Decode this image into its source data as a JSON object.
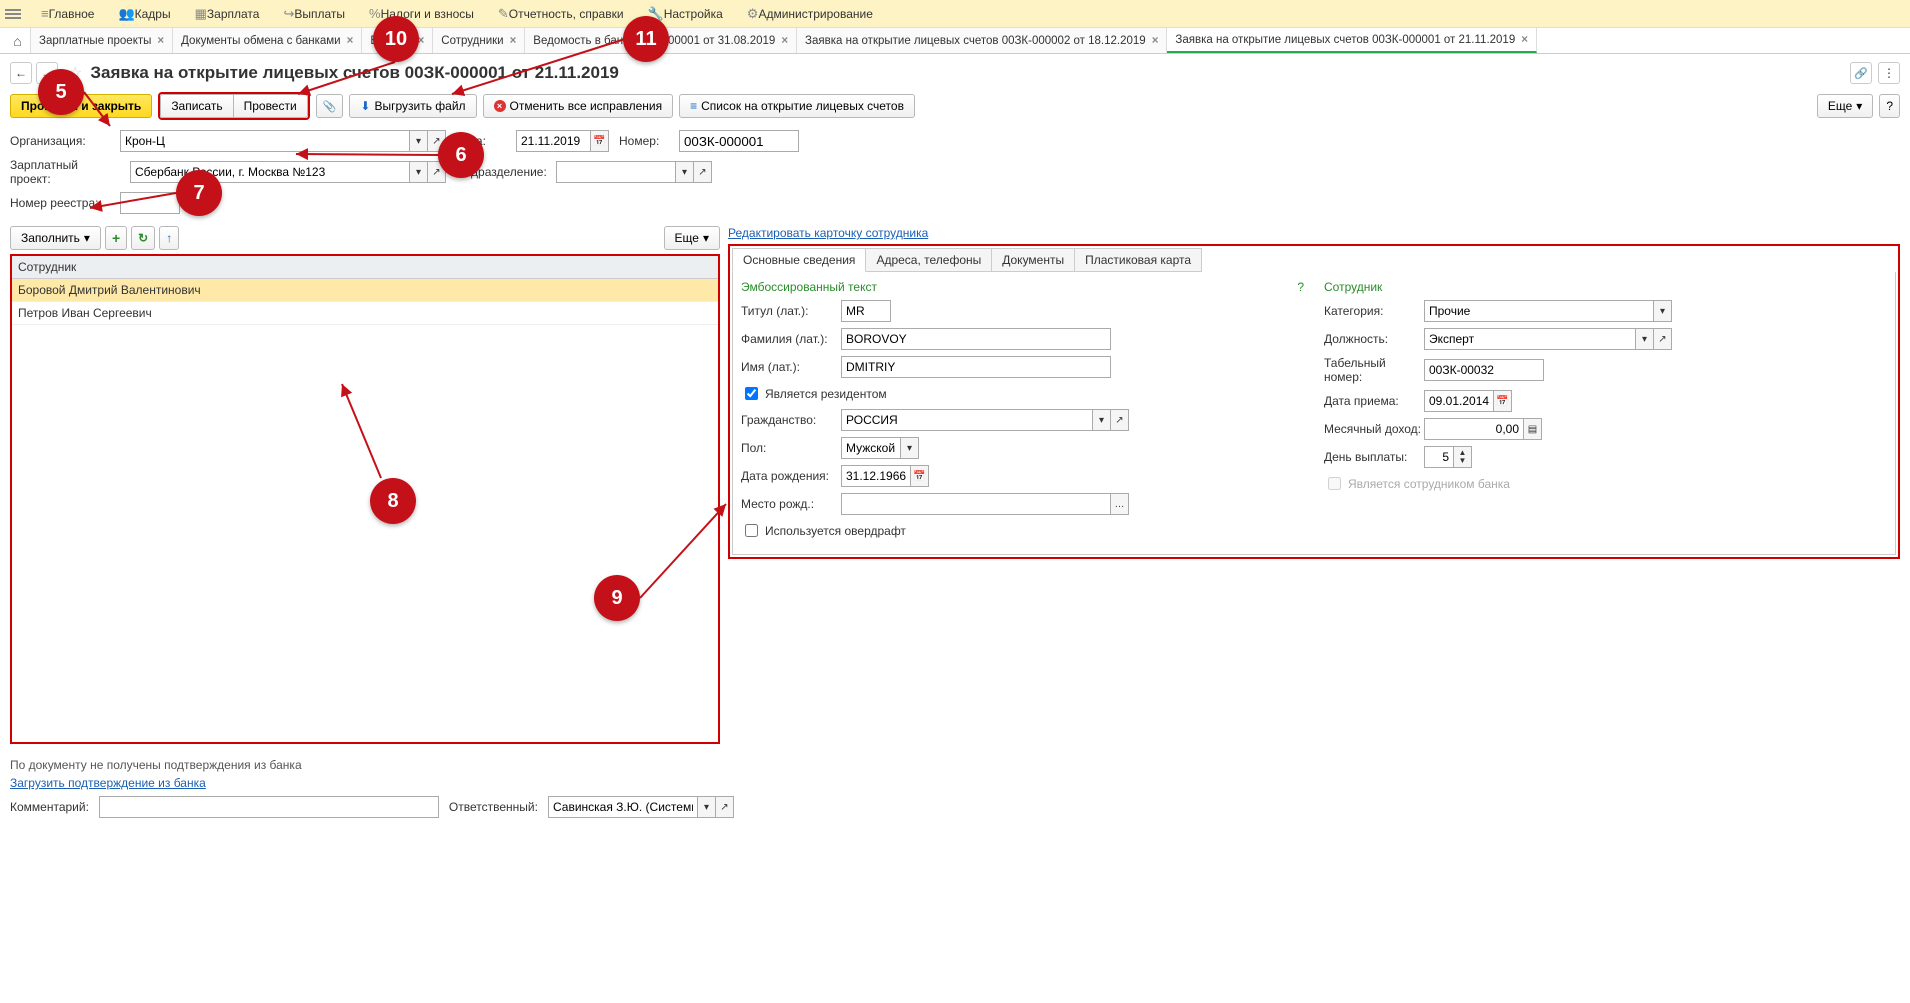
{
  "top_menu": [
    {
      "icon": "≡",
      "label": "Главное"
    },
    {
      "icon": "👥",
      "label": "Кадры"
    },
    {
      "icon": "▦",
      "label": "Зарплата"
    },
    {
      "icon": "↪",
      "label": "Выплаты"
    },
    {
      "icon": "%",
      "label": "Налоги и взносы"
    },
    {
      "icon": "✎",
      "label": "Отчетность, справки"
    },
    {
      "icon": "🔧",
      "label": "Настройка"
    },
    {
      "icon": "⚙",
      "label": "Администрирование"
    }
  ],
  "tabs": [
    {
      "label": "Зарплатные проекты",
      "active": false
    },
    {
      "label": "Документы обмена с банками",
      "active": false
    },
    {
      "label": "Ведомо",
      "active": false
    },
    {
      "label": "Сотрудники",
      "active": false
    },
    {
      "label": "Ведомость в банк 00ЗК-000001 от 31.08.2019",
      "active": false
    },
    {
      "label": "Заявка на открытие лицевых счетов 00ЗК-000002 от 18.12.2019",
      "active": false
    },
    {
      "label": "Заявка на открытие лицевых счетов 00ЗК-000001 от 21.11.2019",
      "active": true
    }
  ],
  "title": "Заявка на открытие лицевых счетов 00ЗК-000001 от 21.11.2019",
  "toolbar": {
    "post_close": "Провести и закрыть",
    "write": "Записать",
    "post": "Провести",
    "export": "Выгрузить файл",
    "cancel_fixes": "Отменить все исправления",
    "list": "Список на открытие лицевых счетов",
    "more": "Еще"
  },
  "form": {
    "org_label": "Организация:",
    "org_value": "Крон-Ц",
    "date_label": "Дата:",
    "date_value": "21.11.2019",
    "num_label": "Номер:",
    "num_value": "00ЗК-000001",
    "proj_label": "Зарплатный проект:",
    "proj_value": "Сбербанк России, г. Москва №123",
    "dept_label": "Подразделение:",
    "dept_value": "",
    "reg_label": "Номер реестра:",
    "reg_value": ""
  },
  "left": {
    "fill": "Заполнить",
    "more": "Еще",
    "col_header": "Сотрудник",
    "rows": [
      {
        "name": "Боровой Дмитрий Валентинович",
        "selected": true
      },
      {
        "name": "Петров Иван Сергеевич",
        "selected": false
      }
    ]
  },
  "right": {
    "edit_link": "Редактировать карточку сотрудника",
    "tabs": [
      "Основные сведения",
      "Адреса, телефоны",
      "Документы",
      "Пластиковая карта"
    ],
    "active_tab": 0,
    "emboss_title": "Эмбоссированный текст",
    "title_lat_label": "Титул (лат.):",
    "title_lat": "MR",
    "surname_lat_label": "Фамилия (лат.):",
    "surname_lat": "BOROVOY",
    "name_lat_label": "Имя (лат.):",
    "name_lat": "DMITRIY",
    "resident_label": "Является резидентом",
    "resident": true,
    "citizenship_label": "Гражданство:",
    "citizenship": "РОССИЯ",
    "gender_label": "Пол:",
    "gender": "Мужской",
    "birth_label": "Дата рождения:",
    "birth": "31.12.1966",
    "birthplace_label": "Место рожд.:",
    "birthplace": "",
    "overdraft_label": "Используется овердрафт",
    "overdraft": false,
    "employee_title": "Сотрудник",
    "category_label": "Категория:",
    "category": "Прочие",
    "position_label": "Должность:",
    "position": "Эксперт",
    "tabnum_label": "Табельный номер:",
    "tabnum": "00ЗК-00032",
    "hire_label": "Дата приема:",
    "hire": "09.01.2014",
    "income_label": "Месячный доход:",
    "income": "0,00",
    "payday_label": "День выплаты:",
    "payday": "5",
    "bank_emp_label": "Является сотрудником банка",
    "bank_emp": false
  },
  "bottom": {
    "info": "По документу не получены подтверждения из банка",
    "load_link": "Загрузить подтверждение из банка",
    "comment_label": "Комментарий:",
    "comment": "",
    "resp_label": "Ответственный:",
    "resp": "Савинская З.Ю. (Системн"
  },
  "annotations": {
    "5": "5",
    "6": "6",
    "7": "7",
    "8": "8",
    "9": "9",
    "10": "10",
    "11": "11"
  }
}
